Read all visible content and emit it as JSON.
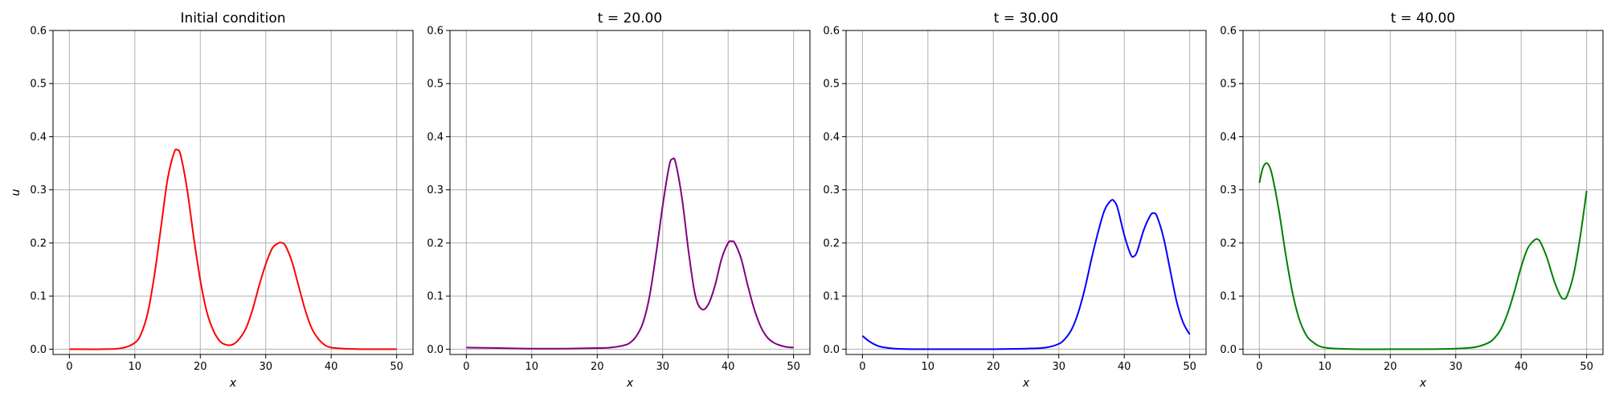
{
  "chart_data": [
    {
      "type": "line",
      "title": "Initial condition",
      "xlabel": "x",
      "ylabel": "u",
      "xlim": [
        -2.5,
        52.5
      ],
      "ylim": [
        -0.01,
        0.6
      ],
      "xticks": [
        0,
        10,
        20,
        30,
        40,
        50
      ],
      "yticks": [
        0.0,
        0.1,
        0.2,
        0.3,
        0.4,
        0.5,
        0.6
      ],
      "grid": true,
      "series": [
        {
          "color": "#ff0000",
          "x": [
            0,
            5,
            8,
            10,
            11,
            12,
            13,
            14,
            15,
            16,
            16.5,
            17,
            18,
            19,
            20,
            21,
            22,
            23,
            24,
            25,
            26,
            27,
            28,
            29,
            30,
            31,
            32,
            32.5,
            33,
            34,
            35,
            36,
            37,
            38,
            39,
            40,
            42,
            45,
            50
          ],
          "y": [
            0.0,
            0.0,
            0.002,
            0.012,
            0.03,
            0.07,
            0.14,
            0.23,
            0.32,
            0.37,
            0.375,
            0.365,
            0.3,
            0.21,
            0.13,
            0.07,
            0.035,
            0.015,
            0.008,
            0.009,
            0.02,
            0.04,
            0.075,
            0.12,
            0.16,
            0.19,
            0.2,
            0.2,
            0.195,
            0.165,
            0.12,
            0.075,
            0.04,
            0.02,
            0.008,
            0.003,
            0.001,
            0.0,
            0.0
          ]
        }
      ]
    },
    {
      "type": "line",
      "title": "t = 20.00",
      "xlabel": "x",
      "ylabel": "",
      "xlim": [
        -2.5,
        52.5
      ],
      "ylim": [
        -0.01,
        0.6
      ],
      "xticks": [
        0,
        10,
        20,
        30,
        40,
        50
      ],
      "yticks": [
        0.0,
        0.1,
        0.2,
        0.3,
        0.4,
        0.5,
        0.6
      ],
      "grid": true,
      "series": [
        {
          "color": "#800080",
          "x": [
            0,
            5,
            10,
            15,
            20,
            22,
            24,
            25,
            26,
            27,
            28,
            29,
            30,
            31,
            31.5,
            32,
            33,
            34,
            35,
            36,
            37,
            38,
            39,
            40,
            40.5,
            41,
            42,
            43,
            44,
            45,
            46,
            47,
            48,
            49,
            50
          ],
          "y": [
            0.003,
            0.002,
            0.001,
            0.001,
            0.002,
            0.003,
            0.007,
            0.012,
            0.025,
            0.05,
            0.1,
            0.18,
            0.27,
            0.345,
            0.358,
            0.35,
            0.28,
            0.18,
            0.1,
            0.075,
            0.085,
            0.12,
            0.17,
            0.2,
            0.203,
            0.2,
            0.17,
            0.12,
            0.075,
            0.042,
            0.022,
            0.012,
            0.007,
            0.004,
            0.003
          ]
        }
      ]
    },
    {
      "type": "line",
      "title": "t = 30.00",
      "xlabel": "x",
      "ylabel": "",
      "xlim": [
        -2.5,
        52.5
      ],
      "ylim": [
        -0.01,
        0.6
      ],
      "xticks": [
        0,
        10,
        20,
        30,
        40,
        50
      ],
      "yticks": [
        0.0,
        0.1,
        0.2,
        0.3,
        0.4,
        0.5,
        0.6
      ],
      "grid": true,
      "series": [
        {
          "color": "#0000ff",
          "x": [
            0,
            1,
            2,
            3,
            5,
            8,
            10,
            15,
            20,
            25,
            28,
            30,
            31,
            32,
            33,
            34,
            35,
            36,
            37,
            38,
            38.5,
            39,
            40,
            41,
            41.5,
            42,
            43,
            44,
            44.5,
            45,
            46,
            47,
            48,
            49,
            50
          ],
          "y": [
            0.025,
            0.015,
            0.008,
            0.004,
            0.001,
            0.0,
            0.0,
            0.0,
            0.0,
            0.001,
            0.003,
            0.01,
            0.02,
            0.038,
            0.07,
            0.115,
            0.17,
            0.22,
            0.262,
            0.28,
            0.278,
            0.265,
            0.215,
            0.178,
            0.175,
            0.185,
            0.225,
            0.252,
            0.256,
            0.25,
            0.21,
            0.15,
            0.09,
            0.05,
            0.028
          ]
        }
      ]
    },
    {
      "type": "line",
      "title": "t = 40.00",
      "xlabel": "x",
      "ylabel": "",
      "xlim": [
        -2.5,
        52.5
      ],
      "ylim": [
        -0.01,
        0.6
      ],
      "xticks": [
        0,
        10,
        20,
        30,
        40,
        50
      ],
      "yticks": [
        0.0,
        0.1,
        0.2,
        0.3,
        0.4,
        0.5,
        0.6
      ],
      "grid": true,
      "series": [
        {
          "color": "#008000",
          "x": [
            0,
            0.5,
            1,
            1.5,
            2,
            3,
            4,
            5,
            6,
            7,
            8,
            10,
            15,
            20,
            25,
            30,
            33,
            35,
            36,
            37,
            38,
            39,
            40,
            41,
            42,
            42.5,
            43,
            44,
            45,
            46,
            46.5,
            47,
            48,
            49,
            50
          ],
          "y": [
            0.313,
            0.34,
            0.35,
            0.345,
            0.325,
            0.26,
            0.18,
            0.11,
            0.06,
            0.03,
            0.015,
            0.003,
            0.0,
            0.0,
            0.0,
            0.001,
            0.004,
            0.012,
            0.022,
            0.04,
            0.07,
            0.11,
            0.155,
            0.19,
            0.205,
            0.207,
            0.2,
            0.17,
            0.13,
            0.1,
            0.095,
            0.1,
            0.14,
            0.21,
            0.298
          ]
        }
      ]
    }
  ]
}
